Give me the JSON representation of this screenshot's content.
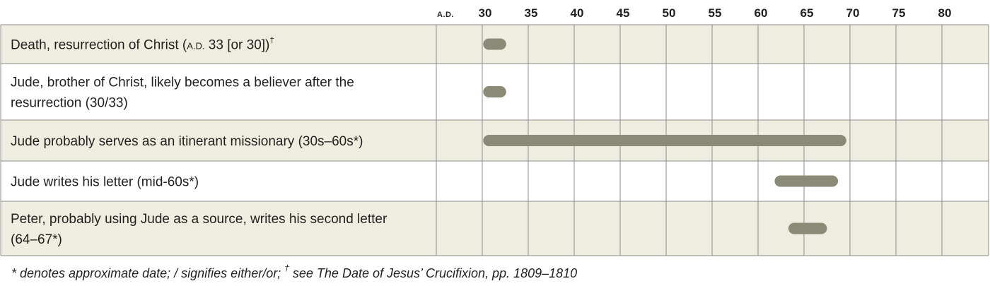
{
  "chart_data": {
    "type": "timeline",
    "era_label": "A.D.",
    "ticks": [
      30,
      35,
      40,
      45,
      50,
      55,
      60,
      65,
      70,
      75,
      80
    ],
    "rows": [
      {
        "label_parts": [
          {
            "t": "Death, resurrection of Christ ("
          },
          {
            "t": "A.D.",
            "cls": "sc"
          },
          {
            "t": " 33 [or 30])"
          },
          {
            "t": "†",
            "cls": "sup"
          }
        ],
        "start": 30.1,
        "end": 32.6,
        "shaded": true
      },
      {
        "label_lines": [
          "Jude, brother of Christ, likely becomes a believer after the",
          "resurrection (30/33)"
        ],
        "start": 30.1,
        "end": 32.6,
        "shaded": false
      },
      {
        "label_lines": [
          "Jude probably serves as an itinerant missionary (30s–60s*)"
        ],
        "start": 30.1,
        "end": 69.6,
        "shaded": true
      },
      {
        "label_lines": [
          "Jude writes his letter (mid-60s*)"
        ],
        "start": 61.8,
        "end": 68.7,
        "shaded": false
      },
      {
        "label_lines": [
          "Peter, probably using Jude as a source, writes his second letter",
          "(64–67*)"
        ],
        "start": 63.3,
        "end": 67.5,
        "shaded": true
      }
    ],
    "bar_color": "#8b8a76",
    "shade_color": "#efece0"
  },
  "footnote": {
    "part1": "* denotes approximate date; / signifies either/or; ",
    "dagger": "†",
    "part2": " see The Date of Jesus’ Crucifixion, pp. 1809–1810"
  }
}
